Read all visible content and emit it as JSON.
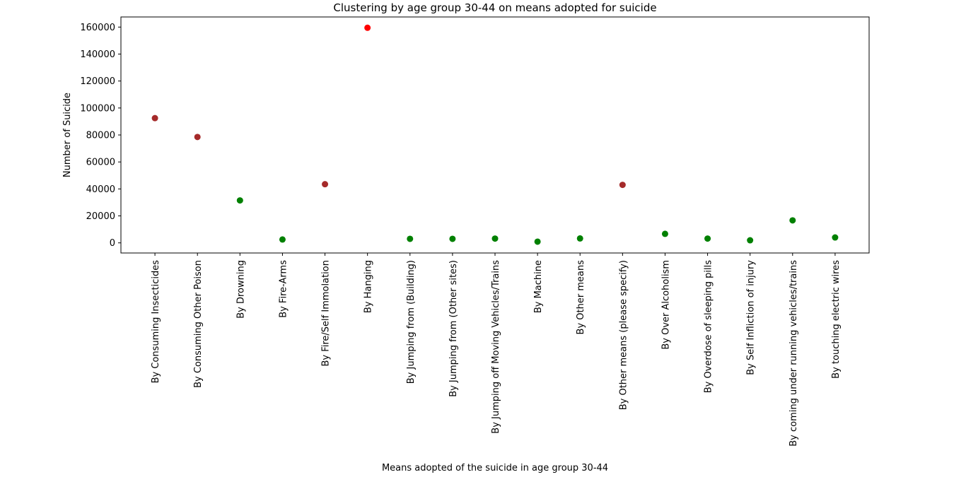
{
  "chart_data": {
    "type": "scatter",
    "title": "Clustering by age group 30-44 on means adopted for suicide",
    "xlabel": "Means adopted of the suicide in age group 30-44",
    "ylabel": "Number of Suicide",
    "ylim": [
      -7500,
      167500
    ],
    "yticks": [
      0,
      20000,
      40000,
      60000,
      80000,
      100000,
      120000,
      140000,
      160000
    ],
    "grid": false,
    "categories": [
      "By Consuming Insecticides",
      "By Consuming Other Poison",
      "By Drowning",
      "By Fire-Arms",
      "By Fire/Self Immolation",
      "By Hanging",
      "By Jumping from (Building)",
      "By Jumping from (Other sites)",
      "By Jumping off Moving Vehicles/Trains",
      "By Machine",
      "By Other means",
      "By Other means (please specify)",
      "By Over Alcoholism",
      "By Overdose of sleeping pills",
      "By Self Infliction of injury",
      "By coming under running vehicles/trains",
      "By touching electric wires"
    ],
    "values": [
      92500,
      78500,
      31500,
      2500,
      43500,
      159500,
      3000,
      3000,
      3200,
      900,
      3300,
      43000,
      6700,
      3200,
      1900,
      16700,
      4000
    ],
    "clusters": [
      1,
      1,
      0,
      0,
      1,
      2,
      0,
      0,
      0,
      0,
      0,
      1,
      0,
      0,
      0,
      0,
      0
    ],
    "cluster_colors": [
      "#008000",
      "#a52a2a",
      "#ff0000"
    ]
  }
}
